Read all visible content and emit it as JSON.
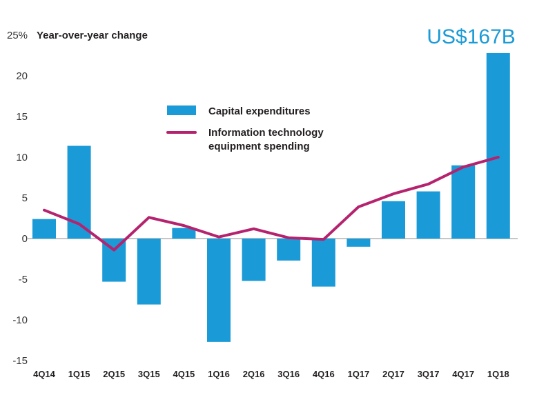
{
  "chart_data": {
    "type": "bar",
    "title": "",
    "ylabel": "Year-over-year change",
    "yunit": "%",
    "xlabel": "",
    "ylim": [
      -15,
      25
    ],
    "yticks": [
      25,
      20,
      15,
      10,
      5,
      0,
      -5,
      -10,
      -15
    ],
    "ytick_labels": [
      "25%",
      "20",
      "15",
      "10",
      "5",
      "0",
      "-5",
      "-10",
      "-15"
    ],
    "categories": [
      "4Q14",
      "1Q15",
      "2Q15",
      "3Q15",
      "4Q15",
      "1Q16",
      "2Q16",
      "3Q16",
      "4Q16",
      "1Q17",
      "2Q17",
      "3Q17",
      "4Q17",
      "1Q18"
    ],
    "series": [
      {
        "name": "Capital expenditures",
        "type": "bar",
        "color": "#1a9ad6",
        "values": [
          2.4,
          11.4,
          -5.3,
          -8.1,
          1.3,
          -12.7,
          -5.2,
          -2.7,
          -5.9,
          -1.0,
          4.6,
          5.8,
          9.0,
          22.8
        ]
      },
      {
        "name": "Information technology equipment spending",
        "name_lines": [
          "Information technology",
          "equipment spending"
        ],
        "type": "line",
        "color": "#b5226e",
        "values": [
          3.5,
          1.8,
          -1.4,
          2.6,
          1.6,
          0.2,
          1.2,
          0.1,
          -0.1,
          3.9,
          5.5,
          6.7,
          8.8,
          10.0
        ]
      }
    ],
    "annotations": [
      {
        "text": "US$167B",
        "category": "1Q18",
        "color": "#1a9ad6"
      }
    ],
    "legend": {
      "placement": "top-center"
    },
    "grid": false,
    "zero_line_color": "#b3b3b3"
  }
}
